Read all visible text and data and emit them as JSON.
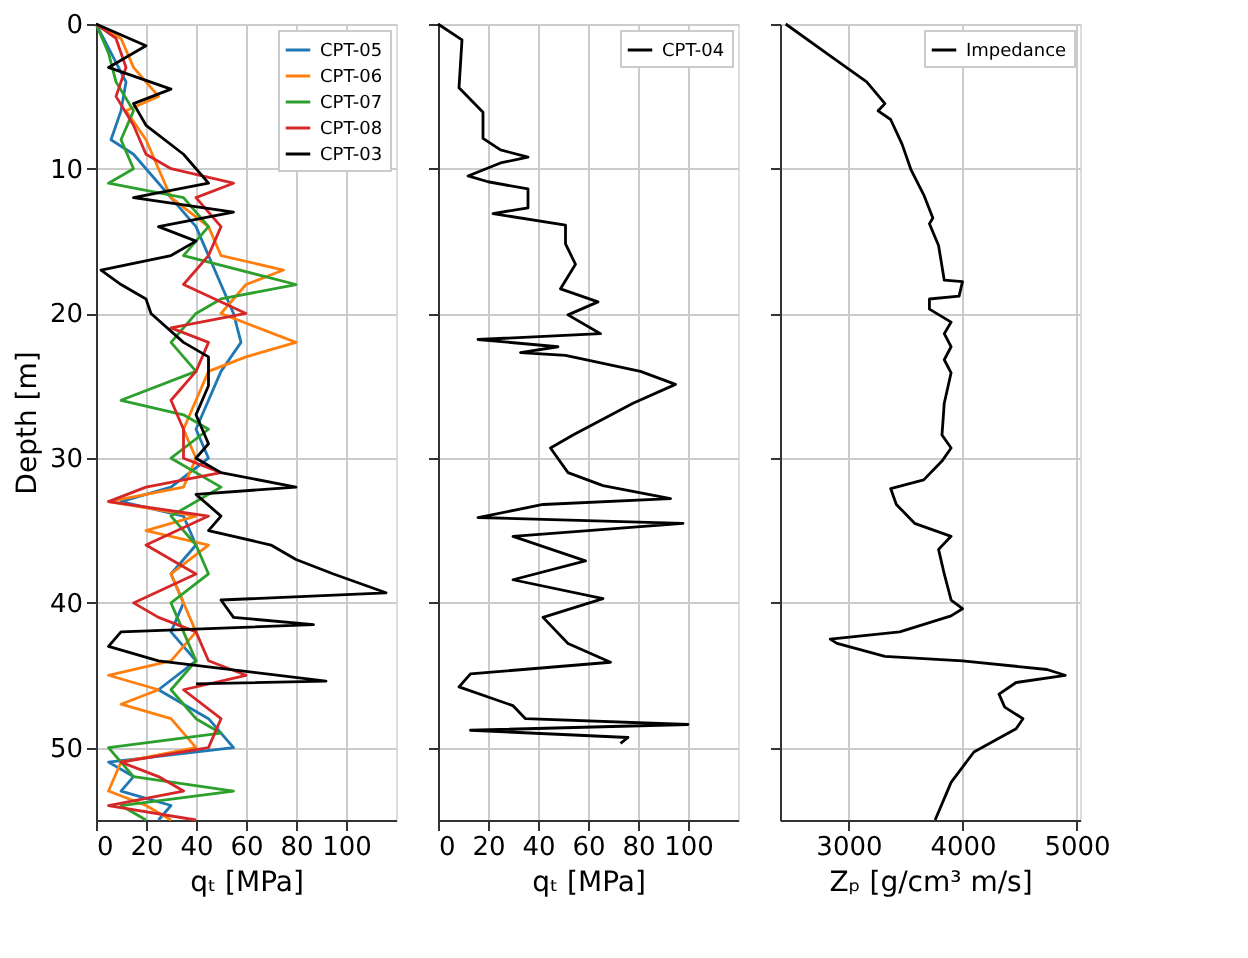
{
  "chart_data": [
    {
      "type": "line",
      "ylabel": "Depth [m]",
      "xlabel": "qₜ [MPa]",
      "xlim": [
        0,
        120
      ],
      "xticks": [
        0,
        20,
        40,
        60,
        80,
        100
      ],
      "ylim": [
        55,
        0
      ],
      "yticks": [
        0,
        10,
        20,
        30,
        40,
        50
      ],
      "grid": true,
      "legend": "top right",
      "series": [
        {
          "name": "CPT-05",
          "color": "#1f77b4",
          "x": [
            0,
            6,
            12,
            10,
            6,
            15,
            20,
            30,
            40,
            45,
            50,
            55,
            58,
            50,
            45,
            40,
            45,
            30,
            10,
            35,
            40,
            30,
            35,
            30,
            40,
            25,
            45,
            55,
            5,
            15,
            10,
            30,
            25
          ],
          "values": [
            0,
            2,
            4,
            6,
            8,
            9,
            10,
            12,
            14,
            16,
            18,
            20,
            22,
            24,
            26,
            28,
            30,
            32,
            33,
            34,
            36,
            38,
            40,
            42,
            44,
            46,
            48,
            50,
            51,
            52,
            53,
            54,
            55
          ]
        },
        {
          "name": "CPT-06",
          "color": "#ff7f0e",
          "x": [
            0,
            10,
            15,
            25,
            12,
            20,
            25,
            30,
            45,
            50,
            75,
            60,
            55,
            50,
            80,
            60,
            45,
            40,
            35,
            40,
            35,
            5,
            40,
            20,
            45,
            30,
            35,
            40,
            30,
            5,
            25,
            10,
            30,
            40,
            10,
            5,
            20,
            30
          ],
          "values": [
            0,
            1,
            3,
            5,
            6,
            8,
            10,
            12,
            14,
            16,
            17,
            18,
            19,
            20,
            22,
            23,
            24,
            26,
            28,
            30,
            32,
            33,
            34,
            35,
            36,
            38,
            40,
            42,
            44,
            45,
            46,
            47,
            48,
            50,
            51,
            53,
            54,
            55
          ]
        },
        {
          "name": "CPT-07",
          "color": "#2ca02c",
          "x": [
            0,
            5,
            8,
            15,
            10,
            15,
            5,
            35,
            45,
            35,
            80,
            50,
            40,
            30,
            40,
            10,
            35,
            45,
            30,
            50,
            30,
            40,
            45,
            30,
            35,
            40,
            30,
            40,
            50,
            5,
            10,
            15,
            55,
            10,
            20
          ],
          "values": [
            0,
            2,
            4,
            6,
            8,
            10,
            11,
            12,
            14,
            16,
            18,
            19,
            20,
            22,
            24,
            26,
            27,
            28,
            30,
            32,
            34,
            36,
            38,
            40,
            42,
            44,
            46,
            48,
            49,
            50,
            51,
            52,
            53,
            54,
            55
          ]
        },
        {
          "name": "CPT-08",
          "color": "#d62728",
          "x": [
            0,
            8,
            12,
            8,
            15,
            20,
            30,
            55,
            40,
            50,
            45,
            35,
            60,
            30,
            45,
            40,
            30,
            35,
            35,
            50,
            20,
            5,
            45,
            20,
            40,
            15,
            25,
            40,
            45,
            60,
            35,
            50,
            45,
            10,
            25,
            35,
            5,
            40
          ],
          "values": [
            0,
            1,
            3,
            5,
            7,
            9,
            10,
            11,
            12,
            14,
            16,
            18,
            20,
            21,
            22,
            24,
            26,
            28,
            30,
            31,
            32,
            33,
            34,
            36,
            38,
            40,
            41,
            42,
            44,
            45,
            46,
            48,
            50,
            51,
            52,
            53,
            54,
            55
          ]
        },
        {
          "name": "CPT-03",
          "color": "#000000",
          "x": [
            0,
            20,
            10,
            5,
            30,
            15,
            20,
            35,
            45,
            15,
            55,
            25,
            40,
            30,
            2,
            10,
            20,
            22,
            35,
            45,
            45,
            40,
            45,
            40,
            50,
            80,
            40,
            50,
            45,
            70,
            80,
            95,
            116,
            50,
            55,
            87,
            10,
            5,
            25,
            92,
            40
          ],
          "values": [
            0,
            1.5,
            2.5,
            3,
            4.5,
            5.5,
            7,
            9,
            11,
            12,
            13,
            14,
            15,
            16,
            17,
            18,
            19,
            20,
            22,
            23,
            25,
            27,
            29,
            30,
            31,
            32,
            32.5,
            34,
            35,
            36,
            37,
            38,
            39.3,
            39.8,
            41,
            41.5,
            42,
            43,
            44,
            45.4,
            45.6
          ]
        }
      ]
    },
    {
      "type": "line",
      "xlabel": "qₜ [MPa]",
      "xlim": [
        0,
        120
      ],
      "xticks": [
        0,
        20,
        40,
        60,
        80,
        100
      ],
      "ylim": [
        55,
        0
      ],
      "yticks": [
        0,
        10,
        20,
        30,
        40,
        50
      ],
      "grid": true,
      "legend": "top right",
      "tick_labels": "x",
      "series": [
        {
          "name": "CPT-04",
          "color": "#000000",
          "x": [
            0,
            9.6,
            8.4,
            18,
            18,
            25,
            36,
            25,
            12,
            20,
            36,
            36,
            22,
            51,
            51,
            55,
            49,
            64,
            52,
            65,
            16,
            48,
            33,
            51,
            81,
            95,
            78,
            54,
            45,
            52,
            66,
            93,
            42,
            16,
            98,
            30,
            59,
            30,
            66,
            42,
            52,
            69,
            13,
            8.4,
            30,
            35,
            100,
            13,
            76,
            73
          ],
          "values": [
            0,
            1.1,
            4.4,
            6.1,
            7.9,
            8.7,
            9.2,
            9.6,
            10.5,
            10.9,
            11.4,
            12.7,
            13.1,
            13.9,
            15.2,
            16.6,
            18.3,
            19.2,
            20.1,
            21.4,
            21.8,
            22.3,
            22.7,
            22.9,
            24,
            24.9,
            26.2,
            28.4,
            29.3,
            31,
            31.9,
            32.8,
            33.2,
            34.1,
            34.5,
            35.4,
            37.1,
            38.4,
            39.7,
            41,
            42.8,
            44.1,
            44.9,
            45.8,
            47.1,
            48,
            48.4,
            48.8,
            49.3,
            49.7
          ]
        }
      ]
    },
    {
      "type": "line",
      "xlabel": "Zₚ [g/cm³ m/s]",
      "xlim": [
        2400,
        5030
      ],
      "xticks": [
        3000,
        4000,
        5000
      ],
      "ylim": [
        55,
        0
      ],
      "yticks": [
        0,
        10,
        20,
        30,
        40,
        50
      ],
      "grid": true,
      "legend": "top right",
      "tick_labels": "x",
      "series": [
        {
          "name": "Impedance",
          "color": "#000000",
          "x": [
            2450,
            2840,
            3160,
            3320,
            3260,
            3370,
            3470,
            3550,
            3660,
            3740,
            3710,
            3790,
            3840,
            4000,
            3970,
            3710,
            3710,
            3900,
            3840,
            3900,
            3840,
            3900,
            3840,
            3820,
            3900,
            3820,
            3660,
            3370,
            3420,
            3580,
            3900,
            3790,
            3840,
            3900,
            4000,
            3900,
            3450,
            2840,
            2900,
            3320,
            4000,
            4740,
            4900,
            4470,
            4320,
            4370,
            4530,
            4470,
            4100,
            3900,
            3760
          ],
          "values": [
            0,
            2.2,
            4,
            5.5,
            6,
            6.6,
            8.3,
            10.1,
            11.8,
            13.4,
            13.8,
            15.3,
            17.7,
            17.8,
            18.8,
            19,
            19.7,
            20.6,
            21.4,
            22.3,
            23.2,
            24.1,
            26.2,
            28.4,
            29.3,
            30.2,
            31.5,
            32.1,
            33.2,
            34.5,
            35.4,
            36.3,
            38,
            39.8,
            40.4,
            40.9,
            42,
            42.5,
            42.8,
            43.7,
            44,
            44.6,
            45,
            45.5,
            46.3,
            47.2,
            48,
            48.7,
            50.3,
            52.4,
            55
          ]
        }
      ]
    }
  ]
}
